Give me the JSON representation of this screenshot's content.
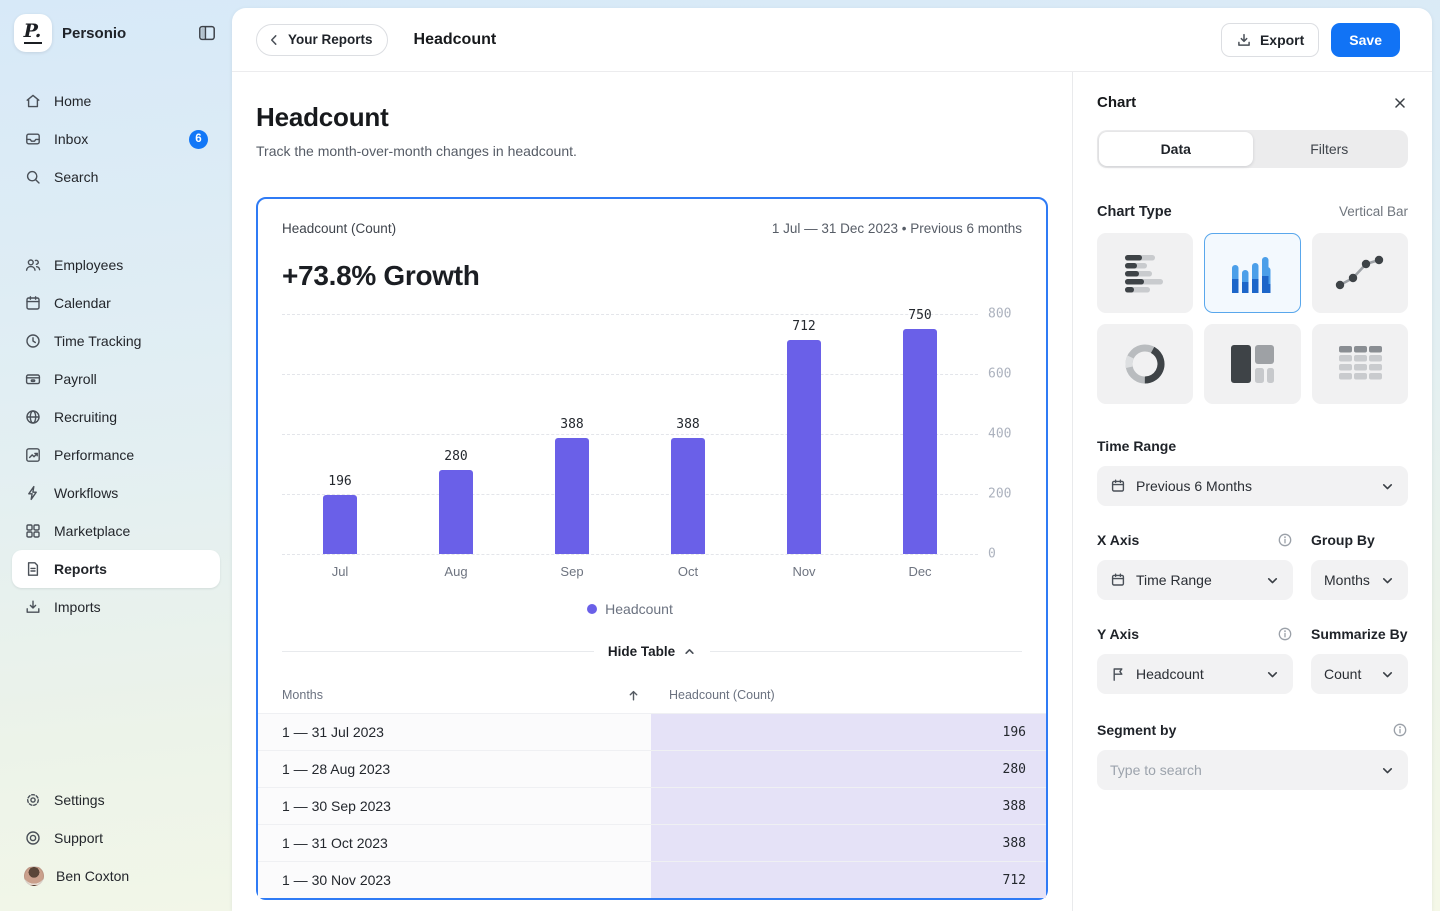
{
  "brand": {
    "name": "Personio",
    "monogram": "P."
  },
  "sidebar": {
    "nav_top": [
      {
        "icon": "home-icon",
        "label": "Home"
      },
      {
        "icon": "inbox-icon",
        "label": "Inbox",
        "badge": "6"
      },
      {
        "icon": "search-icon",
        "label": "Search"
      }
    ],
    "nav_modules": [
      {
        "icon": "employees-icon",
        "label": "Employees"
      },
      {
        "icon": "calendar-icon",
        "label": "Calendar"
      },
      {
        "icon": "clock-icon",
        "label": "Time Tracking"
      },
      {
        "icon": "payroll-icon",
        "label": "Payroll"
      },
      {
        "icon": "globe-icon",
        "label": "Recruiting"
      },
      {
        "icon": "performance-icon",
        "label": "Performance"
      },
      {
        "icon": "lightning-icon",
        "label": "Workflows"
      },
      {
        "icon": "marketplace-icon",
        "label": "Marketplace"
      },
      {
        "icon": "document-icon",
        "label": "Reports",
        "active": true
      },
      {
        "icon": "import-icon",
        "label": "Imports"
      }
    ],
    "nav_bottom": [
      {
        "icon": "gear-icon",
        "label": "Settings"
      },
      {
        "icon": "lifebuoy-icon",
        "label": "Support"
      }
    ],
    "user": {
      "name": "Ben Coxton"
    }
  },
  "topbar": {
    "back_label": "Your Reports",
    "title": "Headcount",
    "export_label": "Export",
    "save_label": "Save"
  },
  "page": {
    "title": "Headcount",
    "subtitle": "Track the month-over-month changes in headcount."
  },
  "report_card": {
    "metric_label": "Headcount (Count)",
    "date_range": "1 Jul — 31 Dec 2023 • Previous 6 months",
    "growth": "+73.8% Growth",
    "legend_label": "Headcount",
    "hide_table_label": "Hide Table"
  },
  "chart_data": {
    "type": "bar",
    "title": "Headcount (Count)",
    "subtitle": "+73.8% Growth",
    "categories": [
      "Jul",
      "Aug",
      "Sep",
      "Oct",
      "Nov",
      "Dec"
    ],
    "series": [
      {
        "name": "Headcount",
        "values": [
          196,
          280,
          388,
          388,
          712,
          750
        ]
      }
    ],
    "ylim": [
      0,
      800
    ],
    "yticks": [
      0,
      200,
      400,
      600,
      800
    ],
    "xlabel": "",
    "ylabel": "",
    "grid": "dashed-horizontal",
    "legend_position": "bottom",
    "bar_color": "#6a60e8"
  },
  "table": {
    "columns": [
      "Months",
      "Headcount (Count)"
    ],
    "rows": [
      {
        "month": "1 — 31 Jul 2023",
        "value": "196"
      },
      {
        "month": "1 — 28 Aug 2023",
        "value": "280"
      },
      {
        "month": "1 — 30 Sep 2023",
        "value": "388"
      },
      {
        "month": "1 — 31 Oct 2023",
        "value": "388"
      },
      {
        "month": "1 — 30 Nov 2023",
        "value": "712"
      }
    ]
  },
  "panel": {
    "title": "Chart",
    "tabs": [
      "Data",
      "Filters"
    ],
    "active_tab": "Data",
    "chart_type": {
      "label": "Chart Type",
      "selected_name": "Vertical Bar",
      "options": [
        {
          "id": "horizontal-bar"
        },
        {
          "id": "vertical-bar",
          "selected": true
        },
        {
          "id": "line"
        },
        {
          "id": "donut"
        },
        {
          "id": "treemap"
        },
        {
          "id": "table"
        }
      ]
    },
    "time_range": {
      "label": "Time Range",
      "value": "Previous 6 Months"
    },
    "x_axis": {
      "label": "X Axis",
      "value": "Time Range"
    },
    "group_by": {
      "label": "Group By",
      "value": "Months"
    },
    "y_axis": {
      "label": "Y Axis",
      "value": "Headcount"
    },
    "summarize_by": {
      "label": "Summarize By",
      "value": "Count"
    },
    "segment_by": {
      "label": "Segment by",
      "placeholder": "Type to search"
    }
  },
  "colors": {
    "accent_blue": "#1173f5",
    "chart_border": "#2f7bf5",
    "bar_purple": "#6a60e8",
    "table_highlight": "#e5e2f7",
    "badge_blue": "#1277f7",
    "tile_selected_border": "#59a7ec"
  }
}
